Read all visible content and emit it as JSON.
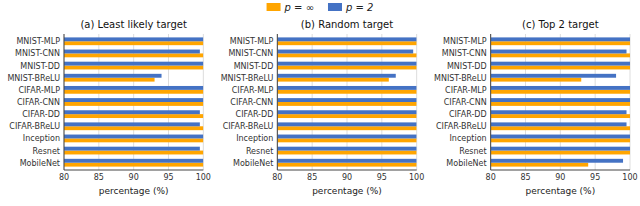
{
  "chart_data": [
    {
      "type": "bar",
      "orientation": "horizontal",
      "title": "(a) Least likely target",
      "categories": [
        "MNIST-MLP",
        "MNIST-CNN",
        "MNIST-DD",
        "MNIST-BReLU",
        "CIFAR-MLP",
        "CIFAR-CNN",
        "CIFAR-DD",
        "CIFAR-BReLU",
        "Inception",
        "Resnet",
        "MobileNet"
      ],
      "series": [
        {
          "name": "p = ∞",
          "color": "#FFA500",
          "values": [
            100,
            100,
            100,
            93,
            100,
            100,
            100,
            100,
            100,
            100,
            100
          ]
        },
        {
          "name": "p = 2",
          "color": "#4472C4",
          "values": [
            100,
            99.5,
            100,
            94,
            100,
            100,
            99.5,
            99.5,
            100,
            99.5,
            100
          ]
        }
      ],
      "xlabel": "percentage (%)",
      "xlim": [
        80,
        100
      ],
      "xticks": [
        80,
        85,
        90,
        95,
        100
      ],
      "grid": true,
      "legend": "top"
    },
    {
      "type": "bar",
      "orientation": "horizontal",
      "title": "(b) Random target",
      "categories": [
        "MNIST-MLP",
        "MNIST-CNN",
        "MNIST-DD",
        "MNIST-BReLU",
        "CIFAR-MLP",
        "CIFAR-CNN",
        "CIFAR-DD",
        "CIFAR-BReLU",
        "Inception",
        "Resnet",
        "MobileNet"
      ],
      "series": [
        {
          "name": "p = ∞",
          "color": "#FFA500",
          "values": [
            100,
            100,
            100,
            96,
            100,
            100,
            100,
            100,
            100,
            100,
            100
          ]
        },
        {
          "name": "p = 2",
          "color": "#4472C4",
          "values": [
            100,
            99.5,
            100,
            97,
            100,
            100,
            100,
            100,
            100,
            100,
            100
          ]
        }
      ],
      "xlabel": "percentage (%)",
      "xlim": [
        80,
        100
      ],
      "xticks": [
        80,
        85,
        90,
        95,
        100
      ],
      "grid": true,
      "legend": "top"
    },
    {
      "type": "bar",
      "orientation": "horizontal",
      "title": "(c) Top 2 target",
      "categories": [
        "MNIST-MLP",
        "MNIST-CNN",
        "MNIST-DD",
        "MNIST-BReLU",
        "CIFAR-MLP",
        "CIFAR-CNN",
        "CIFAR-DD",
        "CIFAR-BReLU",
        "Inception",
        "Resnet",
        "MobileNet"
      ],
      "series": [
        {
          "name": "p = ∞",
          "color": "#FFA500",
          "values": [
            100,
            100,
            100,
            93,
            100,
            100,
            100,
            100,
            100,
            100,
            94
          ]
        },
        {
          "name": "p = 2",
          "color": "#4472C4",
          "values": [
            100,
            99.5,
            100,
            98,
            100,
            100,
            99.5,
            99.5,
            100,
            100,
            99
          ]
        }
      ],
      "xlabel": "percentage (%)",
      "xlim": [
        80,
        100
      ],
      "xticks": [
        80,
        85,
        90,
        95,
        100
      ],
      "grid": true,
      "legend": "top"
    }
  ]
}
